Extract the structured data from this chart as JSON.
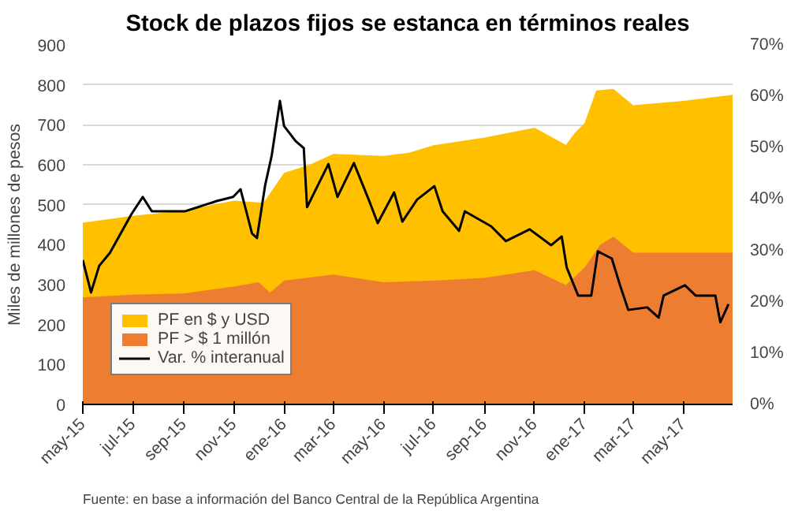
{
  "chart_data": {
    "type": "area",
    "title": "Stock de plazos fijos se estanca en términos reales",
    "ylabel": "Miles de millones de pesos",
    "annotations": [
      "Fuente: en base a información del Banco Central de la República Argentina"
    ],
    "xlim": [
      "2015-05-01",
      "2017-06-30"
    ],
    "xticks": [
      {
        "value": "2015-05-01",
        "label": "may-15"
      },
      {
        "value": "2015-07-01",
        "label": "jul-15"
      },
      {
        "value": "2015-09-01",
        "label": "sep-15"
      },
      {
        "value": "2015-11-01",
        "label": "nov-15"
      },
      {
        "value": "2016-01-01",
        "label": "ene-16"
      },
      {
        "value": "2016-03-01",
        "label": "mar-16"
      },
      {
        "value": "2016-05-01",
        "label": "may-16"
      },
      {
        "value": "2016-07-01",
        "label": "jul-16"
      },
      {
        "value": "2016-09-01",
        "label": "sep-16"
      },
      {
        "value": "2016-11-01",
        "label": "nov-16"
      },
      {
        "value": "2017-01-01",
        "label": "ene-17"
      },
      {
        "value": "2017-03-01",
        "label": "mar-17"
      },
      {
        "value": "2017-05-01",
        "label": "may-17"
      }
    ],
    "ylim": [
      0,
      900
    ],
    "yticks": [
      0,
      100,
      200,
      300,
      400,
      500,
      600,
      700,
      800,
      900
    ],
    "y2lim": [
      0,
      70
    ],
    "y2ticks": [
      {
        "value": 0,
        "label": "0%"
      },
      {
        "value": 10,
        "label": "10%"
      },
      {
        "value": 20,
        "label": "20%"
      },
      {
        "value": 30,
        "label": "30%"
      },
      {
        "value": 40,
        "label": "40%"
      },
      {
        "value": 50,
        "label": "50%"
      },
      {
        "value": 60,
        "label": "60%"
      },
      {
        "value": 70,
        "label": "70%"
      }
    ],
    "grid": "y",
    "legend": "bottom left",
    "series": [
      {
        "name": "PF en $ y USD",
        "color": "#ffc000",
        "x": [
          "2015-05-01",
          "2015-07-01",
          "2015-09-01",
          "2015-11-01",
          "2015-12-07",
          "2016-01-01",
          "2016-02-01",
          "2016-03-01",
          "2016-05-01",
          "2016-06-01",
          "2016-07-01",
          "2016-09-01",
          "2016-11-01",
          "2016-12-09",
          "2016-12-20",
          "2017-01-01",
          "2017-01-15",
          "2017-02-05",
          "2017-03-01",
          "2017-05-01",
          "2017-06-30"
        ],
        "values": [
          455,
          472,
          485,
          510,
          505,
          580,
          600,
          627,
          622,
          630,
          649,
          668,
          693,
          650,
          680,
          705,
          786,
          790,
          749,
          760,
          775
        ]
      },
      {
        "name": "PF > $ 1 millón",
        "color": "#ed7d31",
        "x": [
          "2015-05-01",
          "2015-07-01",
          "2015-09-01",
          "2015-11-01",
          "2015-12-01",
          "2015-12-15",
          "2016-01-01",
          "2016-03-01",
          "2016-05-01",
          "2016-07-01",
          "2016-09-01",
          "2016-11-01",
          "2016-12-09",
          "2017-01-01",
          "2017-01-20",
          "2017-02-05",
          "2017-03-01",
          "2017-06-30"
        ],
        "values": [
          268,
          275,
          278,
          295,
          306,
          280,
          310,
          325,
          306,
          310,
          317,
          336,
          299,
          343,
          400,
          420,
          380,
          380
        ]
      },
      {
        "name": "Var. % interanual",
        "type": "line",
        "axis": "y2",
        "color": "#000000",
        "x": [
          "2015-05-01",
          "2015-05-11",
          "2015-05-21",
          "2015-06-03",
          "2015-06-29",
          "2015-07-13",
          "2015-07-24",
          "2015-09-02",
          "2015-10-11",
          "2015-10-31",
          "2015-11-09",
          "2015-11-23",
          "2015-11-29",
          "2015-12-09",
          "2015-12-17",
          "2015-12-27",
          "2016-01-01",
          "2016-01-15",
          "2016-01-25",
          "2016-01-29",
          "2016-02-06",
          "2016-02-24",
          "2016-03-06",
          "2016-03-26",
          "2016-04-13",
          "2016-04-24",
          "2016-05-14",
          "2016-05-24",
          "2016-06-11",
          "2016-07-02",
          "2016-07-12",
          "2016-08-01",
          "2016-08-08",
          "2016-09-09",
          "2016-09-27",
          "2016-10-26",
          "2016-11-21",
          "2016-12-04",
          "2016-12-10",
          "2016-12-24",
          "2017-01-09",
          "2017-01-17",
          "2017-02-03",
          "2017-02-13",
          "2017-02-23",
          "2017-03-18",
          "2017-04-01",
          "2017-04-07",
          "2017-05-03",
          "2017-05-16",
          "2017-06-09",
          "2017-06-15",
          "2017-06-25"
        ],
        "values": [
          28.1,
          21.8,
          27,
          29.5,
          37,
          40.4,
          37.6,
          37.6,
          39.6,
          40.4,
          41.9,
          33.3,
          32.4,
          42.7,
          48.5,
          59.1,
          54.2,
          51.3,
          49.9,
          38.4,
          41,
          46.8,
          40.4,
          47,
          39.9,
          35.3,
          41.3,
          35.6,
          39.9,
          42.5,
          37.6,
          33.8,
          37.6,
          34.7,
          31.8,
          34.1,
          31,
          32.7,
          26.7,
          21.2,
          21.2,
          29.8,
          28.4,
          23.2,
          18.4,
          18.9,
          16.9,
          21.2,
          23.2,
          21.2,
          21.2,
          16,
          19.5
        ]
      }
    ]
  }
}
